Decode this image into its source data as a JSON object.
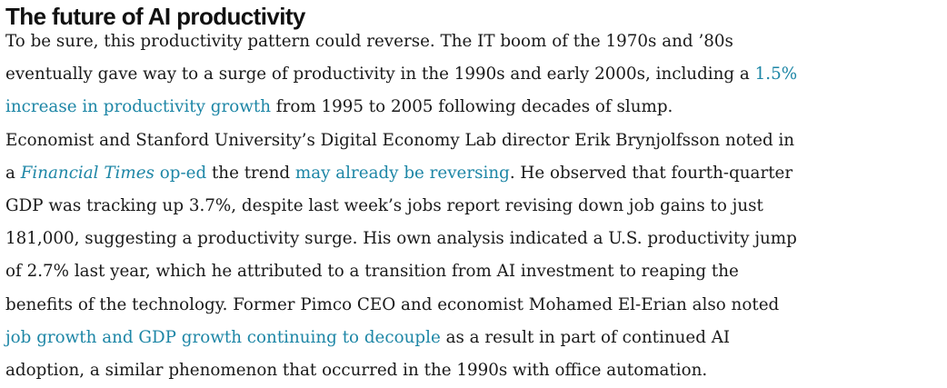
{
  "article": {
    "heading": "The future of AI productivity",
    "link_color": "#1d86a6",
    "lines": [
      [
        {
          "t": "To be sure, this productivity pattern could reverse. The IT boom of the 1970s and ’80s"
        }
      ],
      [
        {
          "t": "eventually gave way to a surge of productivity in the 1990s and early 2000s, including a "
        },
        {
          "t": "1.5%",
          "link": true
        }
      ],
      [
        {
          "t": "increase in productivity growth",
          "link": true
        },
        {
          "t": " from 1995 to 2005 following decades of slump."
        }
      ],
      [
        {
          "t": "Economist and Stanford University’s Digital Economy Lab director Erik Brynjolfsson noted in"
        }
      ],
      [
        {
          "t": "a "
        },
        {
          "t": "Financial Times",
          "link": true,
          "italic": true
        },
        {
          "t": " op-ed",
          "link": true
        },
        {
          "t": " the trend "
        },
        {
          "t": "may already be reversing",
          "link": true
        },
        {
          "t": ". He observed that fourth-quarter"
        }
      ],
      [
        {
          "t": "GDP was tracking up 3.7%, despite last week’s jobs report revising down job gains to just"
        }
      ],
      [
        {
          "t": "181,000, suggesting a productivity surge. His own analysis indicated a U.S. productivity jump"
        }
      ],
      [
        {
          "t": "of 2.7% last year, which he attributed to a transition from AI investment to reaping the"
        }
      ],
      [
        {
          "t": "benefits of the technology. Former Pimco CEO and economist Mohamed El-Erian also noted"
        }
      ],
      [
        {
          "t": "job growth and GDP growth continuing to decouple",
          "link": true
        },
        {
          "t": " as a result in part of continued AI"
        }
      ],
      [
        {
          "t": "adoption, a similar phenomenon that occurred in the 1990s with office automation."
        }
      ]
    ]
  }
}
